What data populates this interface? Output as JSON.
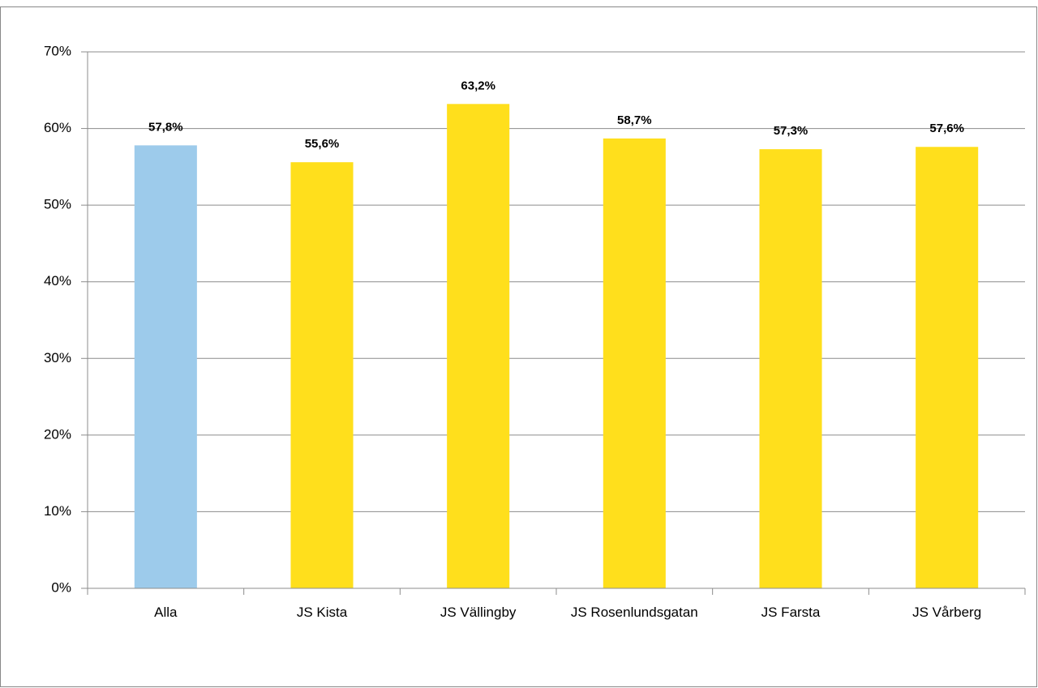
{
  "chart_data": {
    "type": "bar",
    "categories": [
      "Alla",
      "JS Kista",
      "JS Vällingby",
      "JS Rosenlundsgatan",
      "JS Farsta",
      "JS Vårberg"
    ],
    "values": [
      57.8,
      55.6,
      63.2,
      58.7,
      57.3,
      57.6
    ],
    "value_labels": [
      "57,8%",
      "55,6%",
      "63,2%",
      "58,7%",
      "57,3%",
      "57,6%"
    ],
    "colors": [
      "#9dcbeb",
      "#ffdf1c",
      "#ffdf1c",
      "#ffdf1c",
      "#ffdf1c",
      "#ffdf1c"
    ],
    "ylim": [
      0,
      70
    ],
    "yticks": [
      {
        "value": 0,
        "label": "0%"
      },
      {
        "value": 10,
        "label": "10%"
      },
      {
        "value": 20,
        "label": "20%"
      },
      {
        "value": 30,
        "label": "30%"
      },
      {
        "value": 40,
        "label": "40%"
      },
      {
        "value": 50,
        "label": "50%"
      },
      {
        "value": 60,
        "label": "60%"
      },
      {
        "value": 70,
        "label": "70%"
      }
    ],
    "grid": true
  }
}
